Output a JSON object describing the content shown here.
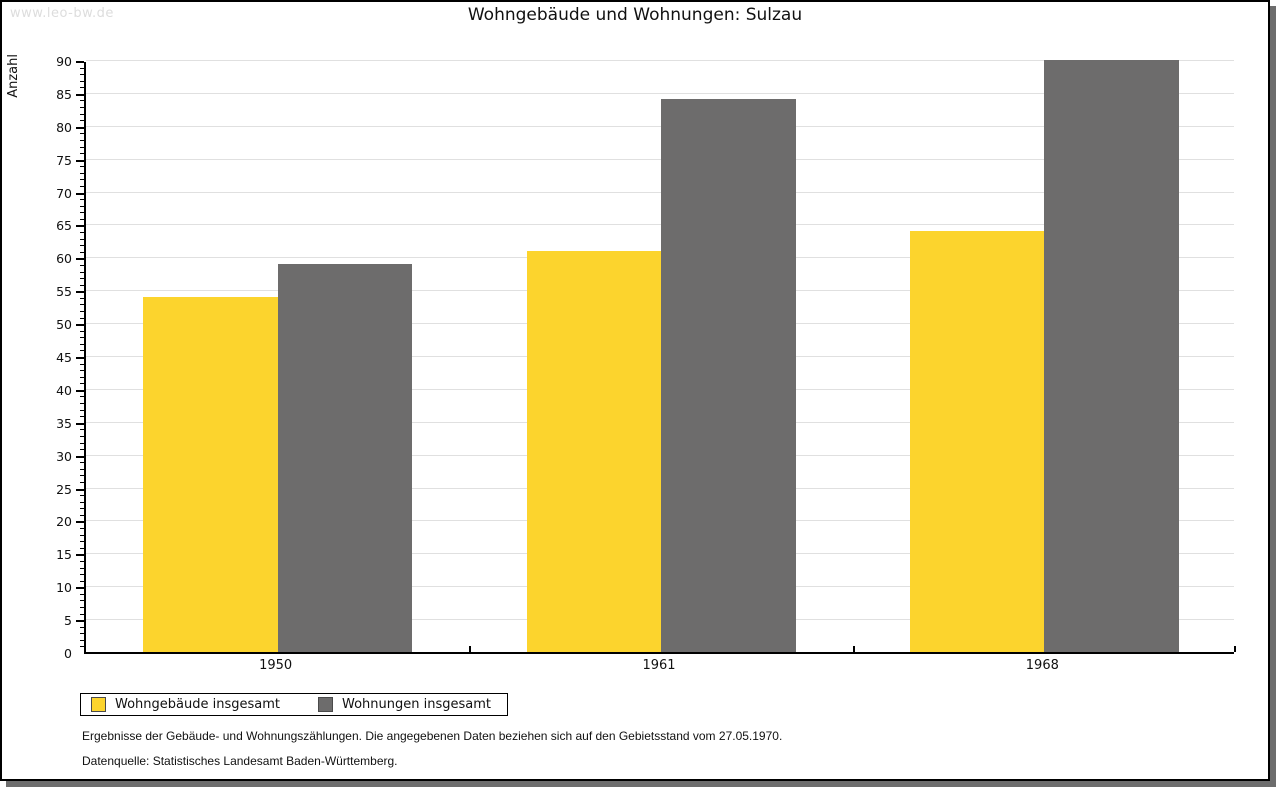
{
  "watermark": "www.leo-bw.de",
  "title": "Wohngebäude und Wohnungen: Sulzau",
  "chart_data": {
    "type": "bar",
    "title": "Wohngebäude und Wohnungen: Sulzau",
    "categories": [
      "1950",
      "1961",
      "1968"
    ],
    "series": [
      {
        "name": "Wohngebäude insgesamt",
        "color": "#fcd42d",
        "values": [
          54,
          61,
          64
        ]
      },
      {
        "name": "Wohnungen insgesamt",
        "color": "#6d6c6c",
        "values": [
          59,
          84,
          90
        ]
      }
    ],
    "xlabel": "",
    "ylabel": "Anzahl",
    "ylim": [
      0,
      90
    ],
    "ytick_step": 5,
    "minor_tick_step": 1,
    "grid": "horizontal",
    "gridline_color": "#e0e0e0",
    "legend_position": "bottom-left"
  },
  "footnotes": {
    "line1": "Ergebnisse der Gebäude- und Wohnungszählungen. Die angegebenen Daten beziehen sich auf den Gebietsstand vom 27.05.1970.",
    "line2": "Datenquelle: Statistisches Landesamt Baden-Württemberg."
  },
  "colors": {
    "series1": "#fcd42d",
    "series2": "#6d6c6c",
    "grid": "#e0e0e0",
    "frame": "#000000",
    "shadow": "#6d6d6d",
    "watermark": "#dddddd"
  }
}
